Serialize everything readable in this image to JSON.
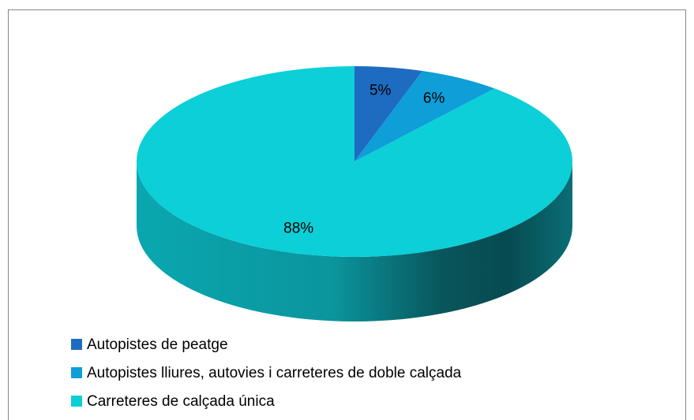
{
  "chart_data": {
    "type": "pie",
    "categories": [
      "Autopistes de peatge",
      "Autopistes lliures, autovies i carreteres de doble calçada",
      "Carreteres de calçada única"
    ],
    "values": [
      5,
      6,
      88
    ],
    "value_labels": [
      "5%",
      "6%",
      "88%"
    ],
    "colors": [
      "#1e6cc2",
      "#0e9ed8",
      "#0ccfd8"
    ],
    "legend": "bottom-left"
  }
}
